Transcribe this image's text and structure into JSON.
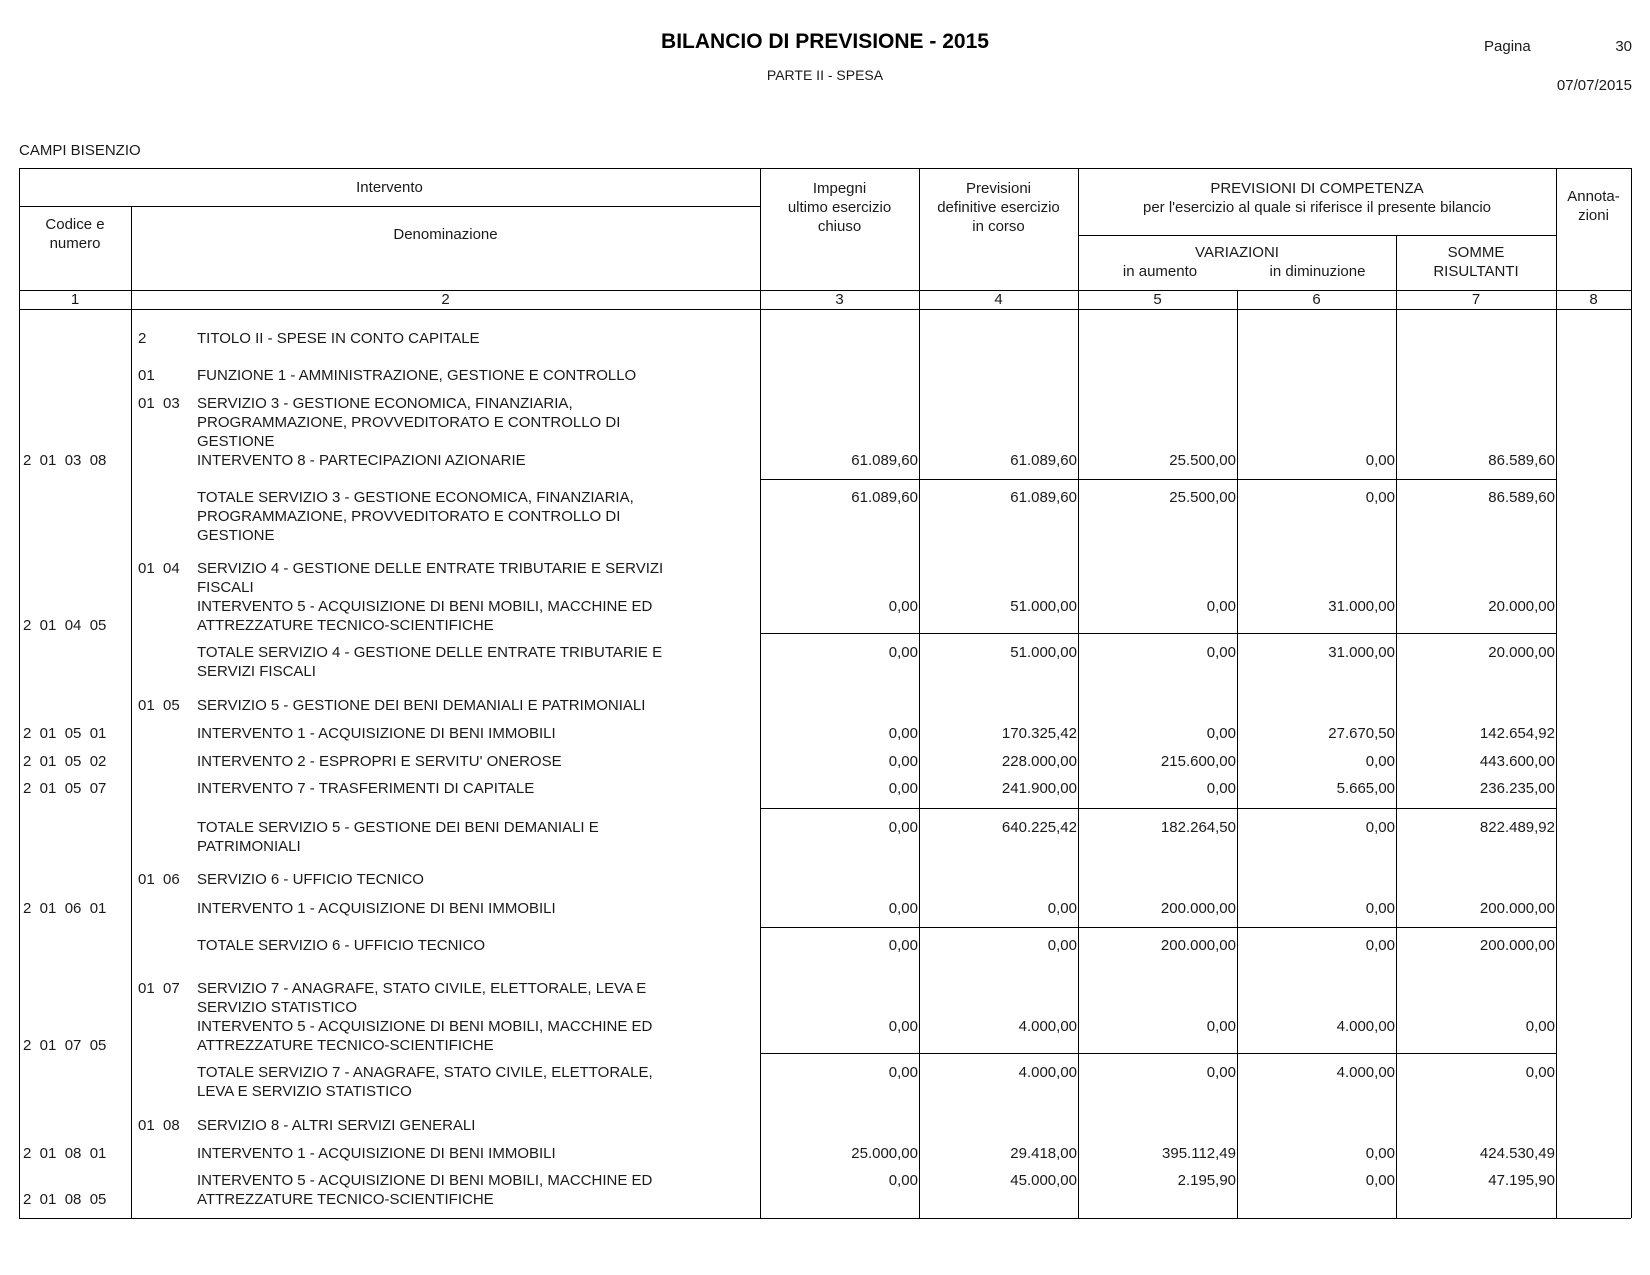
{
  "header": {
    "title": "BILANCIO DI PREVISIONE - 2015",
    "subtitle": "PARTE II - SPESA",
    "page_label": "Pagina",
    "page_number": "30",
    "date": "07/07/2015",
    "entity": "CAMPI BISENZIO"
  },
  "table": {
    "headers": {
      "intervento": "Intervento",
      "codice": "Codice e\nnumero",
      "denominazione": "Denominazione",
      "impegni": "Impegni\nultimo esercizio\nchiuso",
      "previsioni_def": "Previsioni\ndefinitive esercizio\nin corso",
      "competenza": "PREVISIONI DI COMPETENZA\nper l'esercizio al quale si riferisce il presente bilancio",
      "variazioni": "VARIAZIONI",
      "in_aumento": "in aumento",
      "in_diminuzione": "in diminuzione",
      "somme": "SOMME\nRISULTANTI",
      "annotazioni": "Annota-\nzioni"
    },
    "column_numbers": [
      "1",
      "2",
      "3",
      "4",
      "5",
      "6",
      "7",
      "8"
    ],
    "rows": [
      {
        "code": "",
        "sub": "2",
        "text": "TITOLO II - SPESE IN CONTO CAPITALE",
        "values": []
      },
      {
        "code": "",
        "sub": "01",
        "text": "FUNZIONE 1 - AMMINISTRAZIONE, GESTIONE E CONTROLLO",
        "values": []
      },
      {
        "code": "",
        "sub": "01  03",
        "text": "SERVIZIO 3 - GESTIONE ECONOMICA, FINANZIARIA,\nPROGRAMMAZIONE, PROVVEDITORATO E CONTROLLO DI\nGESTIONE",
        "values": []
      },
      {
        "code": "2  01  03  08",
        "sub": "",
        "text": "INTERVENTO 8 - PARTECIPAZIONI AZIONARIE",
        "values": [
          "61.089,60",
          "61.089,60",
          "25.500,00",
          "0,00",
          "86.589,60"
        ]
      },
      {
        "code": "",
        "sub": "",
        "text": "TOTALE SERVIZIO 3 - GESTIONE ECONOMICA, FINANZIARIA,\nPROGRAMMAZIONE, PROVVEDITORATO E CONTROLLO DI\nGESTIONE",
        "values": [
          "61.089,60",
          "61.089,60",
          "25.500,00",
          "0,00",
          "86.589,60"
        ]
      },
      {
        "code": "",
        "sub": "01  04",
        "text": "SERVIZIO 4 - GESTIONE DELLE ENTRATE TRIBUTARIE E SERVIZI\nFISCALI",
        "values": []
      },
      {
        "code": "2  01  04  05",
        "sub": "",
        "text": "INTERVENTO 5 - ACQUISIZIONE DI BENI MOBILI, MACCHINE ED\nATTREZZATURE TECNICO-SCIENTIFICHE",
        "values": [
          "0,00",
          "51.000,00",
          "0,00",
          "31.000,00",
          "20.000,00"
        ]
      },
      {
        "code": "",
        "sub": "",
        "text": "TOTALE SERVIZIO 4 - GESTIONE DELLE ENTRATE TRIBUTARIE E\nSERVIZI FISCALI",
        "values": [
          "0,00",
          "51.000,00",
          "0,00",
          "31.000,00",
          "20.000,00"
        ]
      },
      {
        "code": "",
        "sub": "01  05",
        "text": "SERVIZIO 5 - GESTIONE DEI BENI DEMANIALI E PATRIMONIALI",
        "values": []
      },
      {
        "code": "2  01  05  01",
        "sub": "",
        "text": "INTERVENTO 1 - ACQUISIZIONE DI BENI IMMOBILI",
        "values": [
          "0,00",
          "170.325,42",
          "0,00",
          "27.670,50",
          "142.654,92"
        ]
      },
      {
        "code": "2  01  05  02",
        "sub": "",
        "text": "INTERVENTO 2 - ESPROPRI E SERVITU' ONEROSE",
        "values": [
          "0,00",
          "228.000,00",
          "215.600,00",
          "0,00",
          "443.600,00"
        ]
      },
      {
        "code": "2  01  05  07",
        "sub": "",
        "text": "INTERVENTO 7 - TRASFERIMENTI DI CAPITALE",
        "values": [
          "0,00",
          "241.900,00",
          "0,00",
          "5.665,00",
          "236.235,00"
        ]
      },
      {
        "code": "",
        "sub": "",
        "text": "TOTALE SERVIZIO 5 - GESTIONE DEI BENI DEMANIALI E\nPATRIMONIALI",
        "values": [
          "0,00",
          "640.225,42",
          "182.264,50",
          "0,00",
          "822.489,92"
        ]
      },
      {
        "code": "",
        "sub": "01  06",
        "text": "SERVIZIO 6 - UFFICIO TECNICO",
        "values": []
      },
      {
        "code": "2  01  06  01",
        "sub": "",
        "text": "INTERVENTO 1 - ACQUISIZIONE DI BENI IMMOBILI",
        "values": [
          "0,00",
          "0,00",
          "200.000,00",
          "0,00",
          "200.000,00"
        ]
      },
      {
        "code": "",
        "sub": "",
        "text": "TOTALE SERVIZIO 6 - UFFICIO TECNICO",
        "values": [
          "0,00",
          "0,00",
          "200.000,00",
          "0,00",
          "200.000,00"
        ]
      },
      {
        "code": "",
        "sub": "01  07",
        "text": "SERVIZIO 7 - ANAGRAFE, STATO CIVILE, ELETTORALE, LEVA E\nSERVIZIO STATISTICO",
        "values": []
      },
      {
        "code": "2  01  07  05",
        "sub": "",
        "text": "INTERVENTO 5 - ACQUISIZIONE DI BENI MOBILI, MACCHINE ED\nATTREZZATURE TECNICO-SCIENTIFICHE",
        "values": [
          "0,00",
          "4.000,00",
          "0,00",
          "4.000,00",
          "0,00"
        ]
      },
      {
        "code": "",
        "sub": "",
        "text": "TOTALE SERVIZIO 7 - ANAGRAFE, STATO CIVILE, ELETTORALE,\nLEVA E SERVIZIO STATISTICO",
        "values": [
          "0,00",
          "4.000,00",
          "0,00",
          "4.000,00",
          "0,00"
        ]
      },
      {
        "code": "",
        "sub": "01  08",
        "text": "SERVIZIO 8 - ALTRI SERVIZI GENERALI",
        "values": []
      },
      {
        "code": "2  01  08  01",
        "sub": "",
        "text": "INTERVENTO 1 - ACQUISIZIONE DI BENI IMMOBILI",
        "values": [
          "25.000,00",
          "29.418,00",
          "395.112,49",
          "0,00",
          "424.530,49"
        ]
      },
      {
        "code": "2  01  08  05",
        "sub": "",
        "text": "INTERVENTO 5 - ACQUISIZIONE DI BENI MOBILI, MACCHINE ED\nATTREZZATURE TECNICO-SCIENTIFICHE",
        "values": [
          "0,00",
          "45.000,00",
          "2.195,90",
          "0,00",
          "47.195,90"
        ]
      }
    ]
  }
}
